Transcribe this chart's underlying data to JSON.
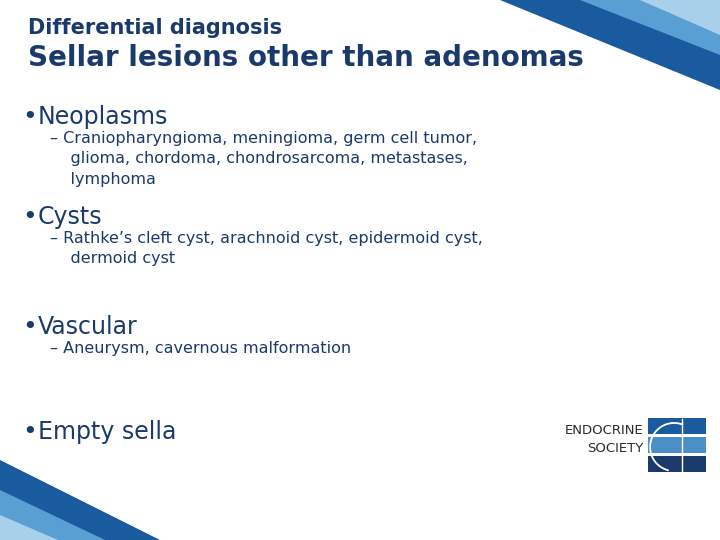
{
  "bg_color": "#ffffff",
  "title_line1": "Differential diagnosis",
  "title_line2": "Sellar lesions other than adenomas",
  "title_color": "#1a3a6b",
  "title1_fontsize": 15,
  "title2_fontsize": 20,
  "bullet_color": "#1a3a6b",
  "bullet_fontsize": 17,
  "sub_fontsize": 11.5,
  "bullets": [
    {
      "main": "Neoplasms",
      "sub": "– Craniopharyngioma, meningioma, germ cell tumor,\n    glioma, chordoma, chondrosarcoma, metastases,\n    lymphoma"
    },
    {
      "main": "Cysts",
      "sub": "– Rathke’s cleft cyst, arachnoid cyst, epidermoid cyst,\n    dermoid cyst"
    },
    {
      "main": "Vascular",
      "sub": "– Aneurysm, cavernous malformation"
    },
    {
      "main": "Empty sella",
      "sub": ""
    }
  ],
  "top_tri_dark": "#1a5a9e",
  "top_tri_mid": "#5a9fd4",
  "top_tri_light": "#a8d0ea",
  "bot_tri_dark": "#1a5a9e",
  "bot_tri_mid": "#5a9fd4",
  "bot_tri_light": "#a8d0ea",
  "logo_bar1": "#1a5a9e",
  "logo_bar2": "#4a8fc8",
  "logo_bar3": "#1a3a6b",
  "logo_text_color": "#2a2a2a",
  "endocrine_fontsize": 9.5
}
